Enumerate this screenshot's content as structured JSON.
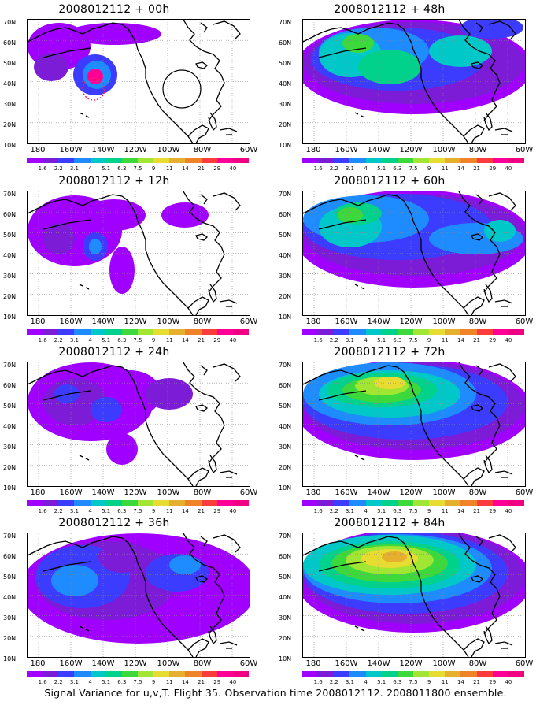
{
  "panels": [
    {
      "title": "2008012112 + 00h"
    },
    {
      "title": "2008012112 + 48h"
    },
    {
      "title": "2008012112 + 12h"
    },
    {
      "title": "2008012112 + 60h"
    },
    {
      "title": "2008012112 + 24h"
    },
    {
      "title": "2008012112 + 72h"
    },
    {
      "title": "2008012112 + 36h"
    },
    {
      "title": "2008012112 + 84h"
    }
  ],
  "axes": {
    "lat_labels": [
      "70N",
      "60N",
      "50N",
      "40N",
      "30N",
      "20N",
      "10N"
    ],
    "lon_labels": [
      "180",
      "160W",
      "140W",
      "120W",
      "100W",
      "80W",
      "60W"
    ]
  },
  "colorbar": {
    "labels": [
      "1.6",
      "2.2",
      "3.1",
      "4",
      "5.1",
      "6.3",
      "7.5",
      "9",
      "11",
      "14",
      "21",
      "29",
      "40"
    ],
    "colors": [
      "#9f00ff",
      "#7c1cd6",
      "#3c3cff",
      "#1e8cff",
      "#00c8c8",
      "#00d28c",
      "#3cd83c",
      "#a0e632",
      "#e6dc32",
      "#e6af2d",
      "#f08228",
      "#fa3c3c",
      "#ff0096",
      "#f00082"
    ]
  },
  "caption": "Signal Variance for u,v,T. Flight 35. Observation time 2008012112. 2008011800 ensemble."
}
